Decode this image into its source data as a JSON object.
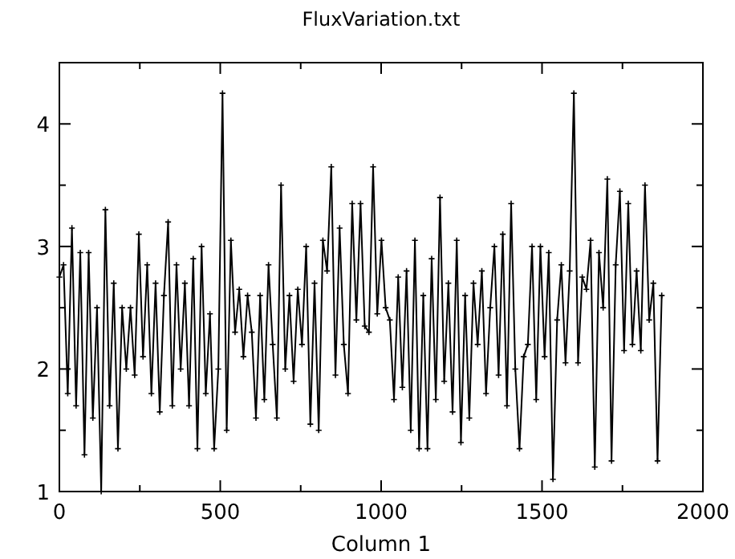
{
  "chart_data": {
    "type": "line",
    "title": "FluxVariation.txt",
    "xlabel": "Column 1",
    "marker": "cross",
    "line_style": "solid",
    "x": [
      0,
      13,
      26,
      39,
      52,
      65,
      78,
      91,
      104,
      117,
      130,
      143,
      156,
      169,
      182,
      195,
      208,
      221,
      234,
      247,
      260,
      273,
      286,
      299,
      312,
      325,
      338,
      351,
      364,
      377,
      390,
      403,
      416,
      429,
      442,
      455,
      468,
      481,
      494,
      507,
      520,
      533,
      546,
      559,
      572,
      585,
      598,
      611,
      624,
      637,
      650,
      663,
      676,
      689,
      702,
      715,
      728,
      741,
      754,
      767,
      780,
      793,
      806,
      819,
      832,
      845,
      858,
      871,
      884,
      897,
      910,
      923,
      936,
      949,
      962,
      975,
      988,
      1001,
      1014,
      1027,
      1040,
      1053,
      1066,
      1079,
      1092,
      1105,
      1118,
      1131,
      1144,
      1157,
      1170,
      1183,
      1196,
      1209,
      1222,
      1235,
      1248,
      1261,
      1274,
      1287,
      1300,
      1313,
      1326,
      1339,
      1352,
      1365,
      1378,
      1391,
      1404,
      1417,
      1430,
      1443,
      1456,
      1469,
      1482,
      1495,
      1508,
      1521,
      1534,
      1547,
      1560,
      1573,
      1586,
      1599,
      1612,
      1625,
      1638,
      1651,
      1664,
      1677,
      1690,
      1703,
      1716,
      1729,
      1742,
      1755,
      1768,
      1781,
      1794,
      1807,
      1820,
      1833,
      1846,
      1859,
      1872
    ],
    "series": [
      {
        "color": "#000000",
        "values": [
          2.75,
          2.85,
          1.8,
          3.15,
          1.7,
          2.95,
          1.3,
          2.95,
          1.6,
          2.5,
          1.0,
          3.3,
          1.7,
          2.7,
          1.35,
          2.5,
          2.0,
          2.5,
          1.95,
          3.1,
          2.1,
          2.85,
          1.8,
          2.7,
          1.65,
          2.6,
          3.2,
          1.7,
          2.85,
          2.0,
          2.7,
          1.7,
          2.9,
          1.35,
          3.0,
          1.8,
          2.45,
          1.35,
          2.0,
          4.25,
          1.5,
          3.05,
          2.3,
          2.65,
          2.1,
          2.6,
          2.3,
          1.6,
          2.6,
          1.75,
          2.85,
          2.2,
          1.6,
          3.5,
          2.0,
          2.6,
          1.9,
          2.65,
          2.2,
          3.0,
          1.55,
          2.7,
          1.5,
          3.05,
          2.8,
          3.65,
          1.95,
          3.15,
          2.2,
          1.8,
          3.35,
          2.4,
          3.35,
          2.35,
          2.3,
          3.65,
          2.45,
          3.05,
          2.5,
          2.4,
          1.75,
          2.75,
          1.85,
          2.8,
          1.5,
          3.05,
          1.35,
          2.6,
          1.35,
          2.9,
          1.75,
          3.4,
          1.9,
          2.7,
          1.65,
          3.05,
          1.4,
          2.6,
          1.6,
          2.7,
          2.2,
          2.8,
          1.8,
          2.5,
          3.0,
          1.95,
          3.1,
          1.7,
          3.35,
          2.0,
          1.35,
          2.1,
          2.2,
          3.0,
          1.75,
          3.0,
          2.1,
          2.95,
          1.1,
          2.4,
          2.85,
          2.05,
          2.8,
          4.25,
          2.05,
          2.75,
          2.65,
          3.05,
          1.2,
          2.95,
          2.5,
          3.55,
          1.25,
          2.85,
          3.45,
          2.15,
          3.35,
          2.2,
          2.8,
          2.15,
          3.5,
          2.4,
          2.7,
          1.25,
          2.6
        ]
      }
    ],
    "xlim": [
      0,
      2000
    ],
    "xticks": [
      0,
      {
        "value": 250,
        "label": null
      },
      500,
      {
        "value": 750,
        "label": null
      },
      1000,
      {
        "value": 1250,
        "label": null
      },
      1500,
      {
        "value": 1750,
        "label": null
      },
      2000
    ],
    "ylim": [
      1,
      4.5
    ],
    "yticks": [
      1,
      {
        "value": 1.5,
        "label": null
      },
      2,
      {
        "value": 2.5,
        "label": null
      },
      3,
      {
        "value": 3.5,
        "label": null
      },
      4
    ]
  }
}
